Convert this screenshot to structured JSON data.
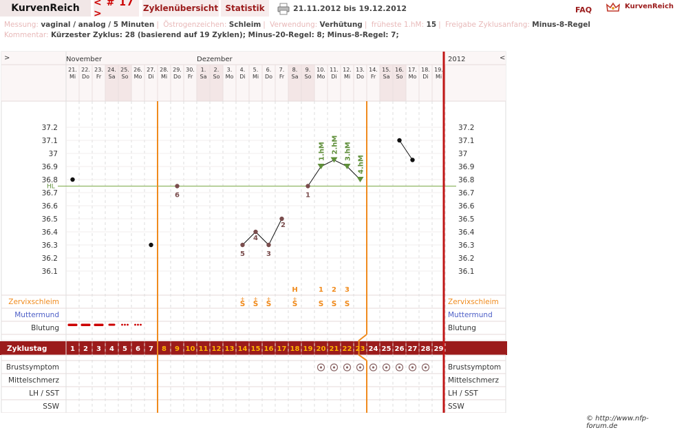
{
  "header": {
    "logo": "KurvenReich",
    "cycle_nav": "< # 17 >",
    "tab_overview": "Zyklenübersicht",
    "tab_stats": "Statistik",
    "date_range": "21.11.2012 bis 19.12.2012",
    "faq": "FAQ",
    "brand": "KurvenReich"
  },
  "info": {
    "measure_label": "Messung:",
    "measure_value": "vaginal / analog / 5 Minuten",
    "estrogen_label": "Östrogenzeichen:",
    "estrogen_value": "Schleim",
    "use_label": "Verwendung:",
    "use_value": "Verhütung",
    "earliest_label": "früheste 1.hM:",
    "earliest_value": "15",
    "release_label": "Freigabe Zyklusanfang:",
    "release_value": "Minus-8-Regel",
    "comment_label": "Kommentar:",
    "comment_value": "Kürzester Zyklus: 28 (basierend auf 19 Zyklen);  Minus-20-Regel: 8; Minus-8-Regel: 7;"
  },
  "chart_header": {
    "left_arrow": ">",
    "right_arrow": "<",
    "year": "2012",
    "months": [
      {
        "name": "November",
        "col": 0
      },
      {
        "name": "Dezember",
        "col": 10
      }
    ]
  },
  "days": [
    {
      "d": "21.",
      "w": "Mi"
    },
    {
      "d": "22.",
      "w": "Do"
    },
    {
      "d": "23.",
      "w": "Fr"
    },
    {
      "d": "24.",
      "w": "Sa"
    },
    {
      "d": "25.",
      "w": "So"
    },
    {
      "d": "26.",
      "w": "Mo"
    },
    {
      "d": "27.",
      "w": "Di"
    },
    {
      "d": "28.",
      "w": "Mi"
    },
    {
      "d": "29.",
      "w": "Do"
    },
    {
      "d": "30.",
      "w": "Fr"
    },
    {
      "d": "1.",
      "w": "Sa"
    },
    {
      "d": "2.",
      "w": "So"
    },
    {
      "d": "3.",
      "w": "Mo"
    },
    {
      "d": "4.",
      "w": "Di"
    },
    {
      "d": "5.",
      "w": "Mi"
    },
    {
      "d": "6.",
      "w": "Do"
    },
    {
      "d": "7.",
      "w": "Fr"
    },
    {
      "d": "8.",
      "w": "Sa"
    },
    {
      "d": "9.",
      "w": "So"
    },
    {
      "d": "10.",
      "w": "Mo"
    },
    {
      "d": "11.",
      "w": "Di"
    },
    {
      "d": "12.",
      "w": "Mi"
    },
    {
      "d": "13.",
      "w": "Do"
    },
    {
      "d": "14.",
      "w": "Fr"
    },
    {
      "d": "15.",
      "w": "Sa"
    },
    {
      "d": "16.",
      "w": "So"
    },
    {
      "d": "17.",
      "w": "Mo"
    },
    {
      "d": "18.",
      "w": "Di"
    },
    {
      "d": "19.",
      "w": "Mi"
    }
  ],
  "weekend_cols": [
    3,
    4,
    10,
    11,
    17,
    18,
    24,
    25
  ],
  "temp_axis": {
    "labels": [
      "37.2",
      "37.1",
      "37",
      "36.9",
      "36.8",
      "36.7",
      "36.6",
      "36.5",
      "36.4",
      "36.3",
      "36.2",
      "36.1"
    ],
    "values": [
      37.2,
      37.1,
      37.0,
      36.9,
      36.8,
      36.7,
      36.6,
      36.5,
      36.4,
      36.3,
      36.2,
      36.1
    ]
  },
  "hl_label": "HL",
  "hl_value": 36.75,
  "temps": [
    {
      "col": 0,
      "v": 36.8,
      "kind": "normal"
    },
    {
      "col": 6,
      "v": 36.3,
      "kind": "normal"
    },
    {
      "col": 8,
      "v": 36.75,
      "kind": "low",
      "label": "6"
    },
    {
      "col": 13,
      "v": 36.3,
      "kind": "low",
      "label": "5",
      "join": true
    },
    {
      "col": 14,
      "v": 36.4,
      "kind": "low",
      "label": "4",
      "join": true
    },
    {
      "col": 15,
      "v": 36.3,
      "kind": "low",
      "label": "3",
      "join": true
    },
    {
      "col": 16,
      "v": 36.5,
      "kind": "low",
      "label": "2",
      "join": true
    },
    {
      "col": 18,
      "v": 36.75,
      "kind": "low",
      "label": "1",
      "join2": true
    },
    {
      "col": 19,
      "v": 36.9,
      "kind": "high",
      "hm": "1.hM",
      "join2": true
    },
    {
      "col": 20,
      "v": 36.95,
      "kind": "high",
      "hm": "2.hM",
      "join2": true
    },
    {
      "col": 21,
      "v": 36.9,
      "kind": "high",
      "hm": "3.hM",
      "join2": true
    },
    {
      "col": 22,
      "v": 36.8,
      "kind": "high",
      "hm": "4.hM",
      "join2": true
    },
    {
      "col": 25,
      "v": 37.1,
      "kind": "normal",
      "join3": true
    },
    {
      "col": 26,
      "v": 36.95,
      "kind": "normal",
      "join3": true
    }
  ],
  "mucus_peak": [
    {
      "col": 17,
      "text": "H"
    },
    {
      "col": 19,
      "text": "1"
    },
    {
      "col": 20,
      "text": "2"
    },
    {
      "col": 21,
      "text": "3"
    }
  ],
  "mucus": [
    {
      "col": 13,
      "text": "S",
      "plus": "+"
    },
    {
      "col": 14,
      "text": "S",
      "plus": "+"
    },
    {
      "col": 15,
      "text": "S",
      "plus": "+"
    },
    {
      "col": 17,
      "text": "S",
      "plus": "+"
    },
    {
      "col": 19,
      "text": "S"
    },
    {
      "col": 20,
      "text": "S"
    },
    {
      "col": 21,
      "text": "S"
    }
  ],
  "bleeding": [
    {
      "col": 0,
      "type": "heavy"
    },
    {
      "col": 1,
      "type": "heavy"
    },
    {
      "col": 2,
      "type": "heavy"
    },
    {
      "col": 3,
      "type": "medium"
    },
    {
      "col": 4,
      "type": "dots"
    },
    {
      "col": 5,
      "type": "dots"
    }
  ],
  "rows": {
    "mucus": "Zervixschleim",
    "cervix": "Muttermund",
    "bleeding": "Blutung",
    "cycleday": "Zyklustag",
    "breast": "Brustsymptom",
    "midpain": "Mittelschmerz",
    "lh": "LH / SST",
    "ssw": "SSW"
  },
  "cycle_days": [
    "1",
    "2",
    "3",
    "4",
    "5",
    "6",
    "7",
    "8",
    "9",
    "10",
    "11",
    "12",
    "13",
    "14",
    "15",
    "16",
    "17",
    "18",
    "19",
    "20",
    "21",
    "22",
    "23",
    "24",
    "25",
    "26",
    "27",
    "28",
    "29"
  ],
  "fertile_cols": [
    7,
    8,
    9,
    10,
    11,
    12,
    13,
    14,
    15,
    16,
    17,
    18,
    19,
    20,
    21,
    22
  ],
  "breast_cols": [
    19,
    20,
    21,
    22,
    23,
    24,
    25,
    26,
    27
  ],
  "colors": {
    "accent": "#9b1b1b",
    "orange": "#f08a1c",
    "green_hl": "#7aa845",
    "hm_green": "#5f8f3a",
    "low_point": "#7a4d4d",
    "muttermund": "#4d5fc7",
    "weekend": "#f3e6e6"
  },
  "copyright": "© http://www.nfp-forum.de"
}
